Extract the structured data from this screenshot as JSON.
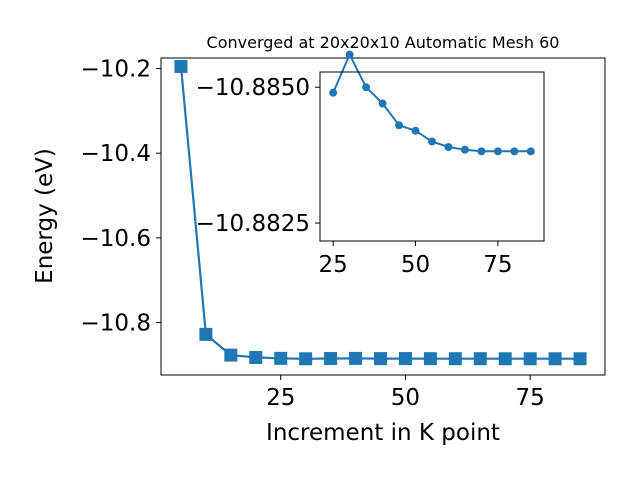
{
  "chart_data": [
    {
      "type": "line",
      "role": "main",
      "title": "Converged at 20x20x10 Automatic Mesh 60",
      "xlabel": "Increment in K point",
      "ylabel": "Energy (eV)",
      "marker": "square",
      "color": "#1f77b4",
      "grid": false,
      "xlim": [
        1,
        90
      ],
      "ylim": [
        -10.924,
        -10.175
      ],
      "xticks": [
        25,
        50,
        75
      ],
      "yticks": [
        -10.2,
        -10.4,
        -10.6,
        -10.8
      ],
      "ytick_labels": [
        "−10.2",
        "−10.4",
        "−10.6",
        "−10.8"
      ],
      "series": [
        {
          "x": [
            5,
            10,
            15,
            20,
            25,
            30,
            35,
            40,
            45,
            50,
            55,
            60,
            65,
            70,
            75,
            80,
            85
          ],
          "y": [
            -10.195,
            -10.828,
            -10.877,
            -10.8825,
            -10.8847,
            -10.8857,
            -10.8851,
            -10.8848,
            -10.8853,
            -10.8852,
            -10.8854,
            -10.8855,
            -10.8855,
            -10.8856,
            -10.8856,
            -10.8856,
            -10.8856
          ]
        }
      ]
    },
    {
      "type": "line",
      "role": "inset",
      "marker": "circle",
      "color": "#1f77b4",
      "grid": false,
      "xlim": [
        21,
        89
      ],
      "ylim": [
        -10.88217,
        -10.88528
      ],
      "xticks": [
        25,
        50,
        75
      ],
      "yticks": [
        -10.885,
        -10.8825
      ],
      "ytick_labels": [
        "−10.8850",
        "−10.8825"
      ],
      "series": [
        {
          "x": [
            25,
            30,
            35,
            40,
            45,
            50,
            55,
            60,
            65,
            70,
            75,
            80,
            85
          ],
          "y": [
            -10.8849,
            -10.8856,
            -10.885,
            -10.8847,
            -10.8843,
            -10.8842,
            -10.884,
            -10.8839,
            -10.88385,
            -10.88382,
            -10.88382,
            -10.88382,
            -10.88382
          ]
        }
      ]
    }
  ]
}
